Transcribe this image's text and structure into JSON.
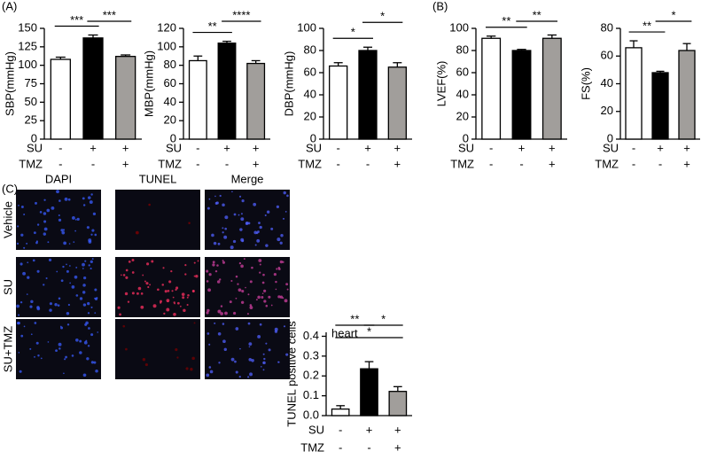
{
  "chart_data": [
    {
      "type": "bar",
      "panel_label": "(A)",
      "ylabel": "SBP(mmHg)",
      "categories": [
        null,
        null,
        null
      ],
      "values": [
        108,
        137,
        112
      ],
      "errors": [
        3,
        4,
        2
      ],
      "colors": [
        "#ffffff",
        "#000000",
        "#a19e9b"
      ],
      "ylim": [
        0,
        150
      ],
      "yticks": [
        0,
        25,
        50,
        75,
        100,
        125,
        150
      ],
      "x_rows": [
        {
          "name": "SU",
          "labels": [
            "-",
            "+",
            "+"
          ]
        },
        {
          "name": "TMZ",
          "labels": [
            "-",
            "-",
            "+"
          ]
        }
      ],
      "brackets": [
        {
          "label": "***",
          "between": [
            0,
            1
          ]
        },
        {
          "label": "***",
          "between": [
            1,
            2
          ]
        }
      ]
    },
    {
      "type": "bar",
      "ylabel": "MBP(mmHg)",
      "categories": [
        null,
        null,
        null
      ],
      "values": [
        85,
        104,
        82
      ],
      "errors": [
        5,
        2,
        3
      ],
      "colors": [
        "#ffffff",
        "#000000",
        "#a19e9b"
      ],
      "ylim": [
        0,
        120
      ],
      "yticks": [
        0,
        20,
        40,
        60,
        80,
        100,
        120
      ],
      "x_rows": [
        {
          "name": "SU",
          "labels": [
            "-",
            "+",
            "+"
          ]
        },
        {
          "name": "TMZ",
          "labels": [
            "-",
            "-",
            "+"
          ]
        }
      ],
      "brackets": [
        {
          "label": "**",
          "between": [
            0,
            1
          ]
        },
        {
          "label": "****",
          "between": [
            1,
            2
          ]
        }
      ]
    },
    {
      "type": "bar",
      "ylabel": "DBP(mmHg)",
      "categories": [
        null,
        null,
        null
      ],
      "values": [
        66,
        80,
        65
      ],
      "errors": [
        3,
        3,
        4
      ],
      "colors": [
        "#ffffff",
        "#000000",
        "#a19e9b"
      ],
      "ylim": [
        0,
        100
      ],
      "yticks": [
        0,
        20,
        40,
        60,
        80,
        100
      ],
      "x_rows": [
        {
          "name": "SU",
          "labels": [
            "-",
            "+",
            "+"
          ]
        },
        {
          "name": "TMZ",
          "labels": [
            "-",
            "-",
            "+"
          ]
        }
      ],
      "brackets": [
        {
          "label": "*",
          "between": [
            0,
            1
          ]
        },
        {
          "label": "*",
          "between": [
            1,
            2
          ]
        }
      ]
    },
    {
      "type": "bar",
      "panel_label": "(B)",
      "ylabel": "LVEF(%)",
      "categories": [
        null,
        null,
        null
      ],
      "values": [
        91,
        80,
        91
      ],
      "errors": [
        2,
        1,
        3
      ],
      "colors": [
        "#ffffff",
        "#000000",
        "#a19e9b"
      ],
      "ylim": [
        0,
        100
      ],
      "yticks": [
        0,
        20,
        40,
        60,
        80,
        100
      ],
      "x_rows": [
        {
          "name": "SU",
          "labels": [
            "-",
            "+",
            "+"
          ]
        },
        {
          "name": "TMZ",
          "labels": [
            "-",
            "-",
            "+"
          ]
        }
      ],
      "brackets": [
        {
          "label": "**",
          "between": [
            0,
            1
          ]
        },
        {
          "label": "**",
          "between": [
            1,
            2
          ]
        }
      ]
    },
    {
      "type": "bar",
      "ylabel": "FS(%)",
      "categories": [
        null,
        null,
        null
      ],
      "values": [
        66,
        48,
        64
      ],
      "errors": [
        5,
        1,
        5
      ],
      "colors": [
        "#ffffff",
        "#000000",
        "#a19e9b"
      ],
      "ylim": [
        0,
        80
      ],
      "yticks": [
        0,
        20,
        40,
        60,
        80
      ],
      "x_rows": [
        {
          "name": "SU",
          "labels": [
            "-",
            "+",
            "+"
          ]
        },
        {
          "name": "TMZ",
          "labels": [
            "-",
            "-",
            "+"
          ]
        }
      ],
      "brackets": [
        {
          "label": "**",
          "between": [
            0,
            1
          ]
        },
        {
          "label": "*",
          "between": [
            1,
            2
          ]
        }
      ]
    },
    {
      "type": "bar",
      "panel_label": "(C)",
      "title": "heart",
      "ylabel": "TUNEL positive cells",
      "categories": [
        null,
        null,
        null
      ],
      "values": [
        0.033,
        0.236,
        0.122
      ],
      "errors": [
        0.017,
        0.036,
        0.024
      ],
      "colors": [
        "#ffffff",
        "#000000",
        "#a19e9b"
      ],
      "ylim": [
        0,
        0.42
      ],
      "yticks": [
        {
          "value": 0,
          "label": "0.0"
        },
        0.1,
        0.2,
        0.3,
        0.4
      ],
      "x_rows": [
        {
          "name": "SU",
          "labels": [
            "-",
            "+",
            "+"
          ]
        },
        {
          "name": "TMZ",
          "labels": [
            "-",
            "-",
            "+"
          ]
        }
      ],
      "brackets": [
        {
          "label": "*",
          "between": [
            0,
            2
          ]
        },
        {
          "label": "**",
          "between": [
            0,
            1
          ]
        },
        {
          "label": "*",
          "between": [
            1,
            2
          ]
        }
      ]
    }
  ],
  "micrographs": {
    "columns": [
      "DAPI",
      "TUNEL",
      "Merge"
    ],
    "rows": [
      "Vehicle",
      "SU",
      "SU+TMZ"
    ]
  }
}
